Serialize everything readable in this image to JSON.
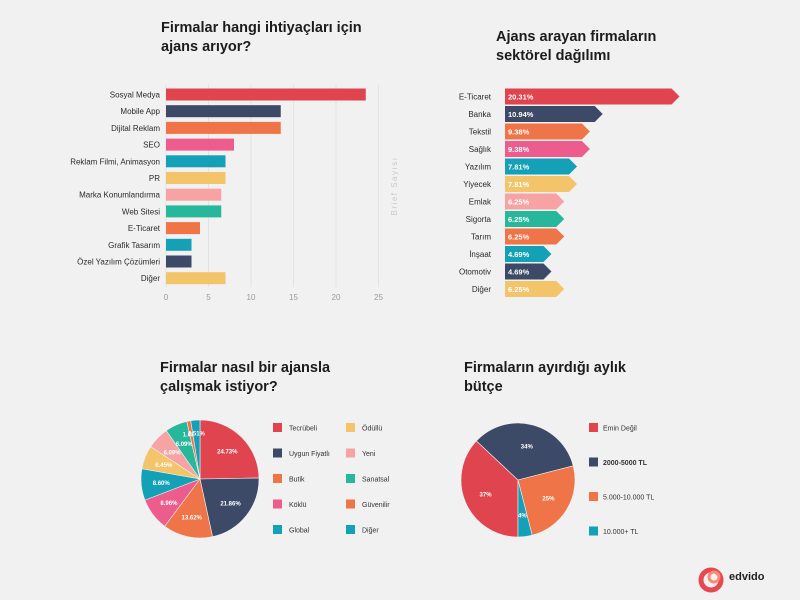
{
  "brand": {
    "name": "edvido",
    "colors": [
      "#e8484f",
      "#ff8a78"
    ]
  },
  "colors": {
    "red": "#e0444e",
    "navy": "#3c4a68",
    "orange": "#ef7447",
    "pink": "#ec5c8d",
    "teal": "#14a0b7",
    "yellow": "#f4c46a",
    "lightpink": "#f7a3a4",
    "green": "#27b89b"
  },
  "chart_data": [
    {
      "type": "bar",
      "orientation": "horizontal",
      "title": "Firmalar hangi ihtiyaçları için ajans arıyor?",
      "ylabel": "",
      "xlabel": "Brief Sayısı",
      "xlim": [
        0,
        25
      ],
      "xticks": [
        "0",
        "5",
        "10",
        "15",
        "20",
        "25"
      ],
      "grid": true,
      "categories": [
        "Sosyal Medya",
        "Mobile App",
        "Dijital Reklam",
        "SEO",
        "Reklam Filmi, Animasyon",
        "PR",
        "Marka Konumlandırma",
        "Web Sitesi",
        "E-Ticaret",
        "Grafik Tasarım",
        "Özel Yazılım Çözümleri",
        "Diğer"
      ],
      "values": [
        23.5,
        13.5,
        13.5,
        8,
        7,
        7,
        6.5,
        6.5,
        4,
        3,
        3,
        7
      ],
      "bar_colors": [
        "red",
        "navy",
        "orange",
        "pink",
        "teal",
        "yellow",
        "lightpink",
        "green",
        "orange",
        "teal",
        "navy",
        "yellow"
      ]
    },
    {
      "type": "bar",
      "orientation": "horizontal",
      "style": "arrow",
      "title": "Ajans arayan firmaların sektörel dağılımı",
      "categories": [
        "E-Ticaret",
        "Banka",
        "Tekstil",
        "Sağlık",
        "Yazılım",
        "Yiyecek",
        "Emlak",
        "Sigorta",
        "Tarım",
        "İnşaat",
        "Otomotiv",
        "Diğer"
      ],
      "values": [
        20.31,
        10.94,
        9.38,
        9.38,
        7.81,
        7.81,
        6.25,
        6.25,
        6.25,
        4.69,
        4.69,
        6.25
      ],
      "value_labels": [
        "20.31%",
        "10.94%",
        "9.38%",
        "9.38%",
        "7.81%",
        "7.81%",
        "6.25%",
        "6.25%",
        "6.25%",
        "4.69%",
        "4.69%",
        "6.25%"
      ],
      "bar_colors": [
        "red",
        "navy",
        "orange",
        "pink",
        "teal",
        "yellow",
        "lightpink",
        "green",
        "orange",
        "teal",
        "navy",
        "yellow"
      ]
    },
    {
      "type": "pie",
      "title": "Firmalar nasıl bir ajansla çalışmak istiyor?",
      "slices": [
        {
          "name": "Tecrübeli",
          "value": 24.73,
          "label": "24.73%",
          "color": "red"
        },
        {
          "name": "Uygun Fiyatlı",
          "value": 21.86,
          "label": "21.86%",
          "color": "navy"
        },
        {
          "name": "Butik",
          "value": 13.62,
          "label": "13.62%",
          "color": "orange"
        },
        {
          "name": "Köklü",
          "value": 8.96,
          "label": "8.96%",
          "color": "pink"
        },
        {
          "name": "Global",
          "value": 8.6,
          "label": "8.60%",
          "color": "teal"
        },
        {
          "name": "Ödüllü",
          "value": 6.45,
          "label": "6.45%",
          "color": "yellow"
        },
        {
          "name": "Yeni",
          "value": 6.09,
          "label": "6.09%",
          "color": "lightpink"
        },
        {
          "name": "Sanatsal",
          "value": 6.09,
          "label": "6.09%",
          "color": "green"
        },
        {
          "name": "Güvenilir",
          "value": 1.08,
          "label": "1.08%",
          "color": "orange"
        },
        {
          "name": "Diğer",
          "value": 2.51,
          "label": "2.51%",
          "color": "teal"
        }
      ],
      "legend_order": [
        "Tecrübeli",
        "Ödüllü",
        "Uygun Fiyatlı",
        "Yeni",
        "Butik",
        "Sanatsal",
        "Köklü",
        "Güvenilir",
        "Global",
        "Diğer"
      ],
      "legend_position": "right"
    },
    {
      "type": "pie",
      "title": "Firmaların ayırdığı aylık bütçe",
      "slices": [
        {
          "name": "Emin Değil",
          "value": 37,
          "label": "37%",
          "color": "red"
        },
        {
          "name": "2000-5000 TL",
          "value": 34,
          "label": "34%",
          "color": "navy"
        },
        {
          "name": "5.000-10.000 TL",
          "value": 25,
          "label": "25%",
          "color": "orange"
        },
        {
          "name": "10.000+ TL",
          "value": 4,
          "label": "4%",
          "color": "teal"
        }
      ],
      "highlighted": "2000-5000 TL",
      "legend_position": "right"
    }
  ]
}
